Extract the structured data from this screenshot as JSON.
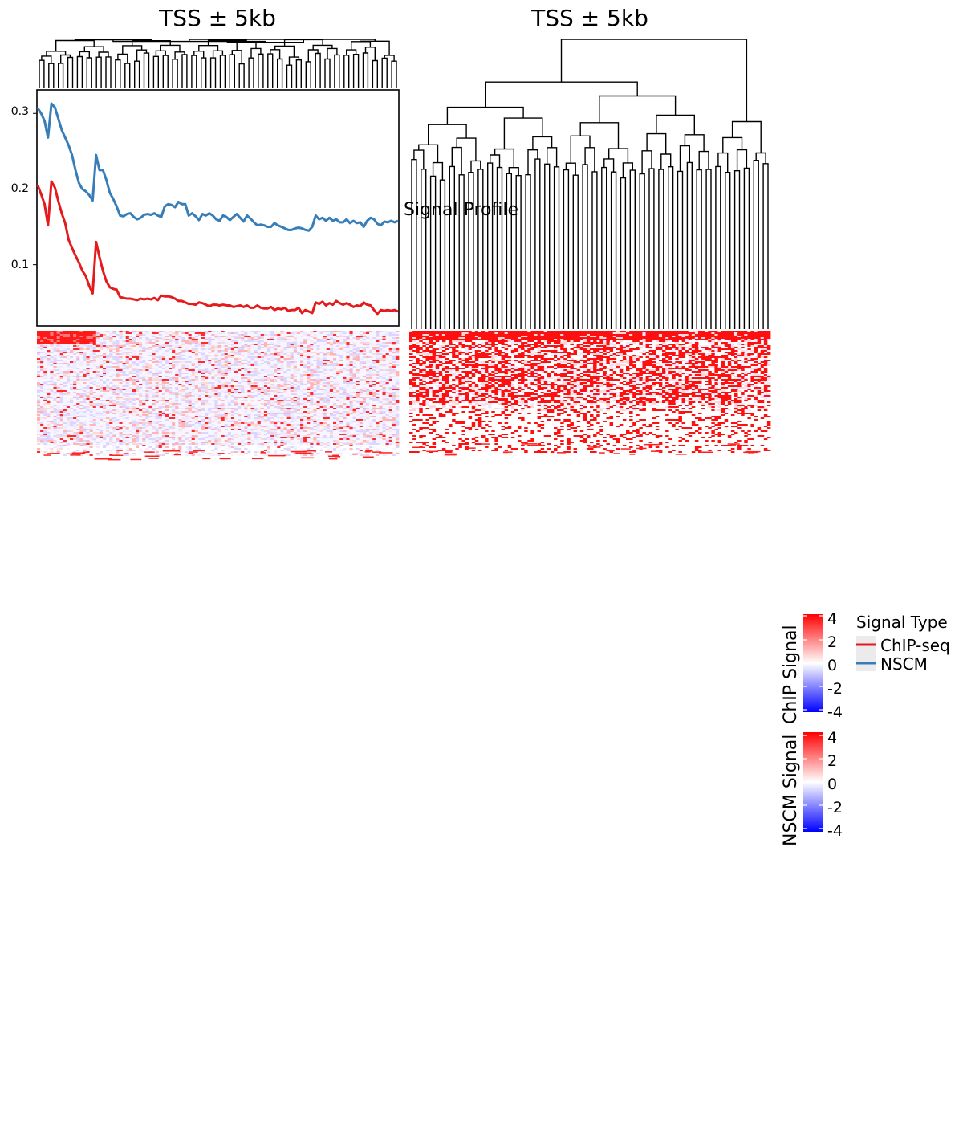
{
  "panels": [
    {
      "title": "TSS ± 5kb"
    },
    {
      "title": "TSS ± 5kb"
    }
  ],
  "profile_label": "Signal Profile",
  "colors": {
    "chip": "#e41a1c",
    "nscm": "#377eb8",
    "heat_high": "#ff0000",
    "heat_mid": "#ffffff",
    "heat_low": "#0000ff",
    "dendrogram": "#000000"
  },
  "colorbars": [
    {
      "title": "ChIP Signal",
      "ticks": [
        "4",
        "2",
        "0",
        "-2",
        "-4"
      ]
    },
    {
      "title": "NSCM Signal",
      "ticks": [
        "4",
        "2",
        "0",
        "-2",
        "-4"
      ]
    }
  ],
  "legend": {
    "title": "Signal Type",
    "items": [
      {
        "label": "ChIP-seq",
        "color": "#e41a1c"
      },
      {
        "label": "NSCM",
        "color": "#377eb8"
      }
    ]
  },
  "chart_data": {
    "type": "line",
    "yticks": [
      "0.1",
      "0.2",
      "0.3"
    ],
    "ylim": [
      0.02,
      0.33
    ],
    "grid": false,
    "series": [
      {
        "name": "ChIP-seq",
        "color": "#e41a1c",
        "values": [
          0.205,
          0.193,
          0.18,
          0.152,
          0.21,
          0.202,
          0.184,
          0.168,
          0.155,
          0.133,
          0.122,
          0.112,
          0.103,
          0.092,
          0.085,
          0.072,
          0.062,
          0.13,
          0.11,
          0.092,
          0.078,
          0.07,
          0.068,
          0.067,
          0.057,
          0.056,
          0.055,
          0.055,
          0.054,
          0.053,
          0.055,
          0.054,
          0.055,
          0.054,
          0.056,
          0.053,
          0.059,
          0.058,
          0.058,
          0.057,
          0.055,
          0.052,
          0.052,
          0.05,
          0.048,
          0.048,
          0.047,
          0.05,
          0.049,
          0.047,
          0.045,
          0.047,
          0.047,
          0.046,
          0.047,
          0.046,
          0.046,
          0.044,
          0.045,
          0.046,
          0.044,
          0.046,
          0.043,
          0.043,
          0.046,
          0.043,
          0.042,
          0.042,
          0.044,
          0.04,
          0.042,
          0.041,
          0.043,
          0.039,
          0.04,
          0.04,
          0.043,
          0.036,
          0.04,
          0.038,
          0.036,
          0.05,
          0.048,
          0.051,
          0.046,
          0.049,
          0.047,
          0.052,
          0.049,
          0.047,
          0.049,
          0.047,
          0.044,
          0.046,
          0.045,
          0.05,
          0.047,
          0.046,
          0.04,
          0.035,
          0.04,
          0.039,
          0.04,
          0.039,
          0.04,
          0.038
        ]
      },
      {
        "name": "NSCM",
        "color": "#377eb8",
        "values": [
          0.307,
          0.3,
          0.29,
          0.268,
          0.313,
          0.308,
          0.293,
          0.278,
          0.268,
          0.258,
          0.245,
          0.225,
          0.208,
          0.2,
          0.197,
          0.192,
          0.185,
          0.245,
          0.225,
          0.225,
          0.212,
          0.195,
          0.187,
          0.177,
          0.165,
          0.164,
          0.167,
          0.168,
          0.163,
          0.16,
          0.162,
          0.166,
          0.167,
          0.166,
          0.168,
          0.165,
          0.163,
          0.177,
          0.18,
          0.179,
          0.176,
          0.183,
          0.18,
          0.18,
          0.165,
          0.168,
          0.164,
          0.159,
          0.167,
          0.165,
          0.168,
          0.165,
          0.16,
          0.158,
          0.165,
          0.163,
          0.159,
          0.163,
          0.167,
          0.162,
          0.157,
          0.165,
          0.161,
          0.156,
          0.152,
          0.153,
          0.152,
          0.15,
          0.15,
          0.155,
          0.152,
          0.15,
          0.148,
          0.146,
          0.146,
          0.148,
          0.149,
          0.148,
          0.146,
          0.145,
          0.15,
          0.165,
          0.16,
          0.162,
          0.158,
          0.162,
          0.158,
          0.16,
          0.156,
          0.156,
          0.16,
          0.155,
          0.158,
          0.155,
          0.156,
          0.15,
          0.158,
          0.162,
          0.16,
          0.154,
          0.152,
          0.157,
          0.156,
          0.158,
          0.156,
          0.158
        ]
      }
    ]
  }
}
